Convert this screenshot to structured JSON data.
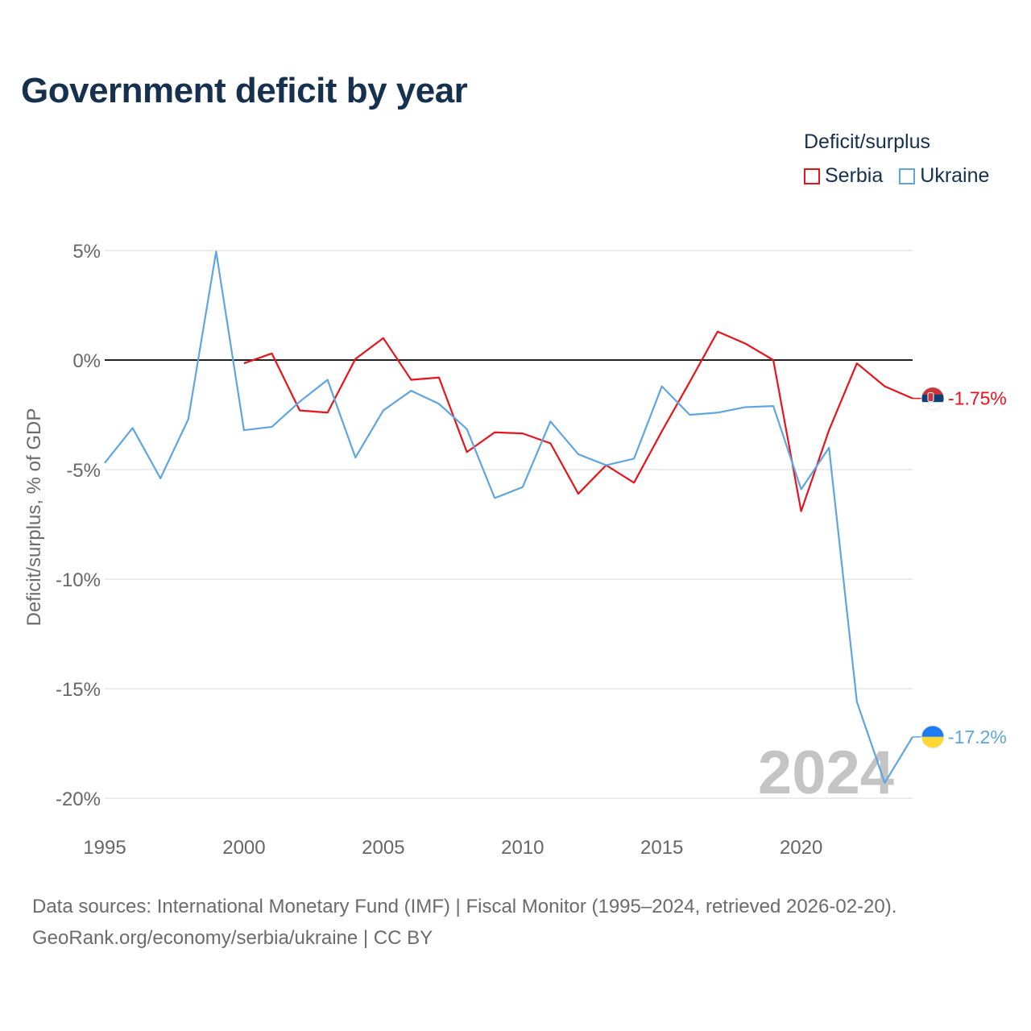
{
  "title": "Government deficit by year",
  "legend": {
    "title": "Deficit/surplus",
    "items": [
      {
        "label": "Serbia",
        "color": "#e8131b"
      },
      {
        "label": "Ukraine",
        "color": "#5fa5e0"
      }
    ]
  },
  "watermark_year": "2024",
  "footer": {
    "line1": "Data sources: International Monetary Fund (IMF) | Fiscal Monitor (1995–2024, retrieved 2026-02-20).",
    "line2": "GeoRank.org/economy/serbia/ukraine | CC BY"
  },
  "chart_data": {
    "type": "line",
    "title": "Government deficit by year",
    "xlabel": "",
    "ylabel": "Deficit/surplus, % of GDP",
    "xlim": [
      1995,
      2024
    ],
    "ylim": [
      -20,
      5
    ],
    "y_ticks": [
      5,
      0,
      -5,
      -10,
      -15,
      -20
    ],
    "y_tick_labels": [
      "5%",
      "0%",
      "-5%",
      "-10%",
      "-15%",
      "-20%"
    ],
    "x_ticks": [
      1995,
      2000,
      2005,
      2010,
      2015,
      2020
    ],
    "x_tick_labels": [
      "1995",
      "2000",
      "2005",
      "2010",
      "2015",
      "2020"
    ],
    "grid": true,
    "zero_line": true,
    "legend_position": "top-right",
    "series": [
      {
        "name": "Serbia",
        "color": "#e8131b",
        "end_label": "-1.75%",
        "flag": "serbia-flag",
        "points": [
          [
            2000,
            -0.15
          ],
          [
            2001,
            0.3
          ],
          [
            2002,
            -2.3
          ],
          [
            2003,
            -2.4
          ],
          [
            2004,
            0.05
          ],
          [
            2005,
            1.0
          ],
          [
            2006,
            -0.9
          ],
          [
            2007,
            -0.8
          ],
          [
            2008,
            -4.2
          ],
          [
            2009,
            -3.3
          ],
          [
            2010,
            -3.35
          ],
          [
            2011,
            -3.8
          ],
          [
            2012,
            -6.1
          ],
          [
            2013,
            -4.8
          ],
          [
            2014,
            -5.6
          ],
          [
            2015,
            -3.25
          ],
          [
            2016,
            -1.0
          ],
          [
            2017,
            1.3
          ],
          [
            2018,
            0.75
          ],
          [
            2019,
            0.0
          ],
          [
            2020,
            -6.9
          ],
          [
            2021,
            -3.2
          ],
          [
            2022,
            -0.15
          ],
          [
            2023,
            -1.2
          ],
          [
            2024,
            -1.75
          ]
        ]
      },
      {
        "name": "Ukraine",
        "color": "#5fa5e0",
        "end_label": "-17.2%",
        "flag": "ukraine-flag",
        "points": [
          [
            1995,
            -4.7
          ],
          [
            1996,
            -3.1
          ],
          [
            1997,
            -5.4
          ],
          [
            1998,
            -2.7
          ],
          [
            1999,
            4.95
          ],
          [
            2000,
            -3.2
          ],
          [
            2001,
            -3.05
          ],
          [
            2002,
            -1.9
          ],
          [
            2003,
            -0.9
          ],
          [
            2004,
            -4.45
          ],
          [
            2005,
            -2.3
          ],
          [
            2006,
            -1.4
          ],
          [
            2007,
            -2.0
          ],
          [
            2008,
            -3.15
          ],
          [
            2009,
            -6.3
          ],
          [
            2010,
            -5.8
          ],
          [
            2011,
            -2.8
          ],
          [
            2012,
            -4.3
          ],
          [
            2013,
            -4.8
          ],
          [
            2014,
            -4.5
          ],
          [
            2015,
            -1.2
          ],
          [
            2016,
            -2.5
          ],
          [
            2017,
            -2.4
          ],
          [
            2018,
            -2.15
          ],
          [
            2019,
            -2.1
          ],
          [
            2020,
            -5.9
          ],
          [
            2021,
            -4.0
          ],
          [
            2022,
            -15.6
          ],
          [
            2023,
            -19.3
          ],
          [
            2024,
            -17.2
          ]
        ]
      }
    ]
  }
}
